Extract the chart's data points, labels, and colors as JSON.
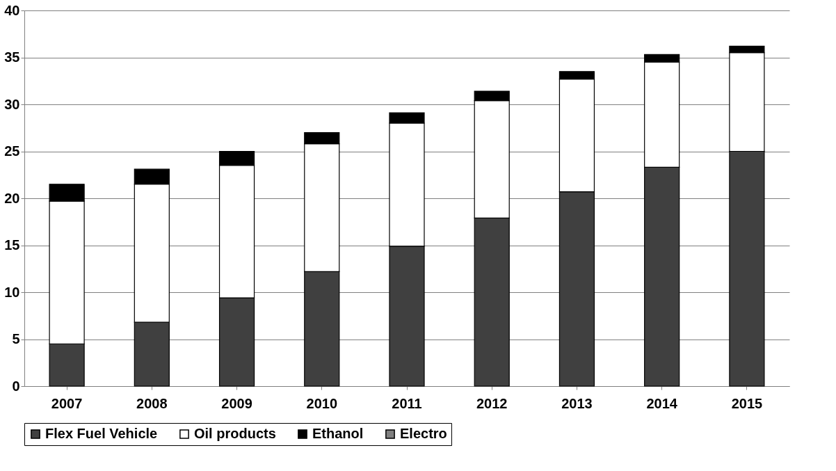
{
  "chart_data": {
    "type": "bar",
    "stacked": true,
    "categories": [
      "2007",
      "2008",
      "2009",
      "2010",
      "2011",
      "2012",
      "2013",
      "2014",
      "2015"
    ],
    "series": [
      {
        "name": "Flex Fuel Vehicle",
        "color": "#404040",
        "values": [
          4.5,
          6.8,
          9.4,
          12.2,
          14.9,
          17.9,
          20.7,
          23.3,
          25.0
        ]
      },
      {
        "name": "Oil products",
        "color": "#ffffff",
        "values": [
          15.2,
          14.7,
          14.1,
          13.6,
          13.1,
          12.5,
          12.0,
          11.2,
          10.5
        ]
      },
      {
        "name": "Ethanol",
        "color": "#000000",
        "values": [
          1.8,
          1.6,
          1.5,
          1.2,
          1.1,
          1.0,
          0.8,
          0.8,
          0.7
        ]
      },
      {
        "name": "Electro",
        "color": "#808080",
        "values": [
          null,
          null,
          null,
          null,
          null,
          null,
          null,
          null,
          null
        ]
      }
    ],
    "ylim": [
      0,
      40
    ],
    "yticks": [
      0,
      5,
      10,
      15,
      20,
      25,
      30,
      35,
      40
    ],
    "grid": "y",
    "legend": "bottom"
  }
}
